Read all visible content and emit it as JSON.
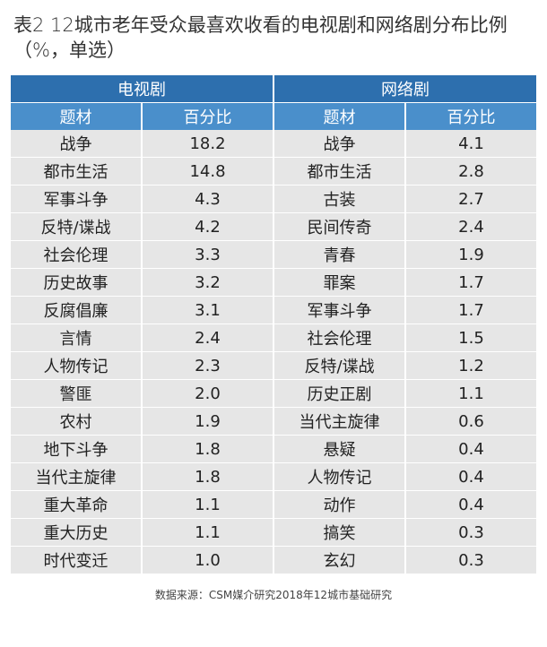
{
  "title": "表2  12城市老年受众最喜欢收看的电视剧和网络剧分布比例（%，单选）",
  "groups": {
    "tv": "电视剧",
    "web": "网络剧"
  },
  "headers": {
    "tv_subject": "题材",
    "tv_pct": "百分比",
    "web_subject": "题材",
    "web_pct": "百分比"
  },
  "rows": [
    {
      "tv_subject": "战争",
      "tv_pct": "18.2",
      "web_subject": "战争",
      "web_pct": "4.1"
    },
    {
      "tv_subject": "都市生活",
      "tv_pct": "14.8",
      "web_subject": "都市生活",
      "web_pct": "2.8"
    },
    {
      "tv_subject": "军事斗争",
      "tv_pct": "4.3",
      "web_subject": "古装",
      "web_pct": "2.7"
    },
    {
      "tv_subject": "反特/谍战",
      "tv_pct": "4.2",
      "web_subject": "民间传奇",
      "web_pct": "2.4"
    },
    {
      "tv_subject": "社会伦理",
      "tv_pct": "3.3",
      "web_subject": "青春",
      "web_pct": "1.9"
    },
    {
      "tv_subject": "历史故事",
      "tv_pct": "3.2",
      "web_subject": "罪案",
      "web_pct": "1.7"
    },
    {
      "tv_subject": "反腐倡廉",
      "tv_pct": "3.1",
      "web_subject": "军事斗争",
      "web_pct": "1.7"
    },
    {
      "tv_subject": "言情",
      "tv_pct": "2.4",
      "web_subject": "社会伦理",
      "web_pct": "1.5"
    },
    {
      "tv_subject": "人物传记",
      "tv_pct": "2.3",
      "web_subject": "反特/谍战",
      "web_pct": "1.2"
    },
    {
      "tv_subject": "警匪",
      "tv_pct": "2.0",
      "web_subject": "历史正剧",
      "web_pct": "1.1"
    },
    {
      "tv_subject": "农村",
      "tv_pct": "1.9",
      "web_subject": "当代主旋律",
      "web_pct": "0.6"
    },
    {
      "tv_subject": "地下斗争",
      "tv_pct": "1.8",
      "web_subject": "悬疑",
      "web_pct": "0.4"
    },
    {
      "tv_subject": "当代主旋律",
      "tv_pct": "1.8",
      "web_subject": "人物传记",
      "web_pct": "0.4"
    },
    {
      "tv_subject": "重大革命",
      "tv_pct": "1.1",
      "web_subject": "动作",
      "web_pct": "0.4"
    },
    {
      "tv_subject": "重大历史",
      "tv_pct": "1.1",
      "web_subject": "搞笑",
      "web_pct": "0.3"
    },
    {
      "tv_subject": "时代变迁",
      "tv_pct": "1.0",
      "web_subject": "玄幻",
      "web_pct": "0.3"
    }
  ],
  "source": "数据来源：CSM媒介研究2018年12城市基础研究"
}
